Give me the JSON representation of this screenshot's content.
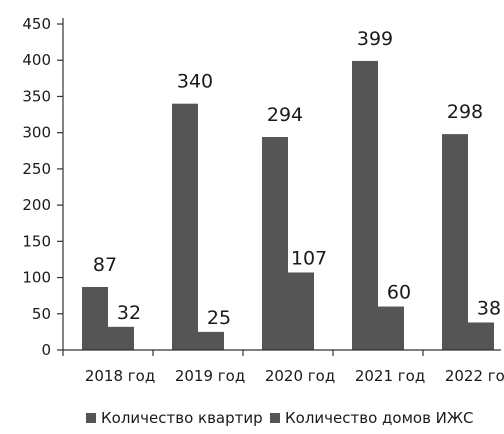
{
  "colors": {
    "bar": "#555555",
    "text": "#1a1a1a",
    "axis": "#333333",
    "background": "#ffffff"
  },
  "chart_data": {
    "type": "bar",
    "categories": [
      "2018 год",
      "2019 год",
      "2020 год",
      "2021 год",
      "2022 год"
    ],
    "series": [
      {
        "name": "Количество квартир",
        "values": [
          87,
          340,
          294,
          399,
          298
        ]
      },
      {
        "name": "Количество домов ИЖС",
        "values": [
          32,
          25,
          107,
          60,
          38
        ]
      }
    ],
    "title": "",
    "xlabel": "",
    "ylabel": "",
    "ylim": [
      0,
      450
    ],
    "yticks": [
      0,
      50,
      100,
      150,
      200,
      250,
      300,
      350,
      400,
      450
    ],
    "grid": false,
    "legend": "bottom",
    "data_labels": true
  }
}
